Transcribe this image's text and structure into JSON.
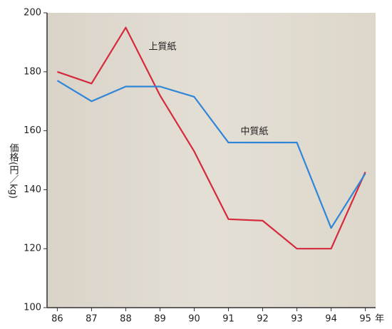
{
  "chart_data": {
    "type": "line",
    "x": [
      86,
      87,
      88,
      89,
      90,
      91,
      92,
      93,
      94,
      95
    ],
    "x_label": "年",
    "y_label": "価格(円／kg)",
    "series": [
      {
        "name": "上質紙",
        "color": "#d42a3c",
        "values": [
          180,
          176,
          195,
          172,
          153,
          130,
          129.5,
          120,
          120,
          146
        ]
      },
      {
        "name": "中質紙",
        "color": "#2f86d8",
        "values": [
          177,
          170,
          175,
          175,
          171.5,
          156,
          156,
          156,
          127,
          145.5
        ]
      }
    ],
    "xlim": [
      85.7,
      95.3
    ],
    "ylim": [
      100,
      200
    ],
    "yticks": [
      100,
      120,
      140,
      160,
      180,
      200
    ]
  }
}
